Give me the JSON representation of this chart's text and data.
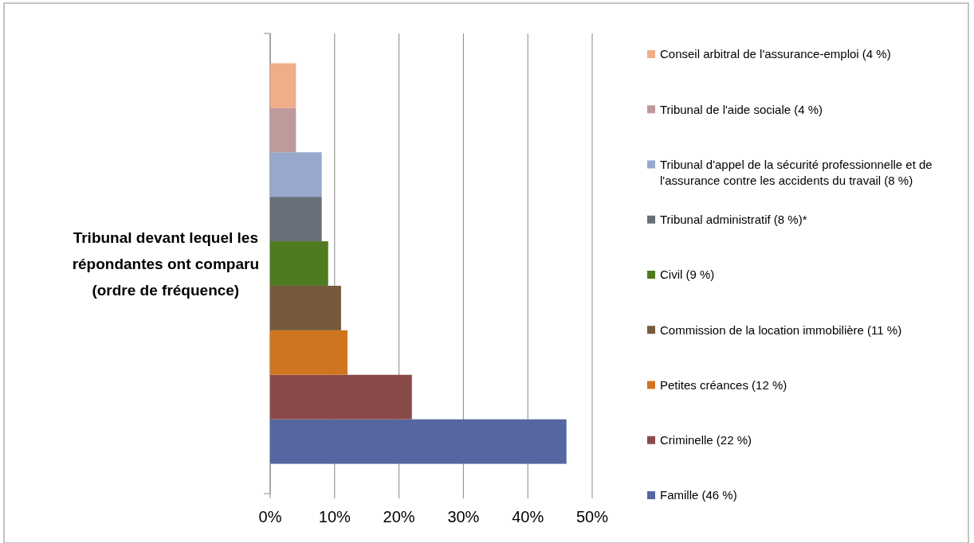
{
  "chart_data": {
    "type": "bar",
    "orientation": "horizontal",
    "categories": [
      null
    ],
    "ylabel": "Tribunal devant lequel les répondantes ont comparu (ordre de fréquence)",
    "series": [
      {
        "name": "Famille (46 %)",
        "color": "#5566a0",
        "values": [
          46
        ]
      },
      {
        "name": "Criminelle (22 %)",
        "color": "#8b4a4a",
        "values": [
          22
        ]
      },
      {
        "name": "Petites créances (12 %)",
        "color": "#d0751f",
        "values": [
          12
        ]
      },
      {
        "name": "Commission de la location immobilière (11 %)",
        "color": "#765a3c",
        "values": [
          11
        ]
      },
      {
        "name": "Civil (9 %)",
        "color": "#4f7a1f",
        "values": [
          9
        ]
      },
      {
        "name": "Tribunal administratif (8 %)*",
        "color": "#686f78",
        "values": [
          8
        ]
      },
      {
        "name": "Tribunal d'appel de la sécurité professionnelle et de l'assurance contre les accidents du travail (8 %)",
        "color": "#98a8cc",
        "values": [
          8
        ]
      },
      {
        "name": "Tribunal de l'aide sociale (4 %)",
        "color": "#bf9a9a",
        "values": [
          4
        ]
      },
      {
        "name": "Conseil arbitral de l'assurance-emploi (4 %)",
        "color": "#f0ad88",
        "values": [
          4
        ]
      }
    ],
    "xlim": [
      0,
      50
    ],
    "xticks": [
      {
        "value": 0,
        "label": "0%"
      },
      {
        "value": 10,
        "label": "10%"
      },
      {
        "value": 20,
        "label": "20%"
      },
      {
        "value": 30,
        "label": "30%"
      },
      {
        "value": 40,
        "label": "40%"
      },
      {
        "value": 50,
        "label": "50%"
      }
    ],
    "grid": "x",
    "legend": "right"
  }
}
